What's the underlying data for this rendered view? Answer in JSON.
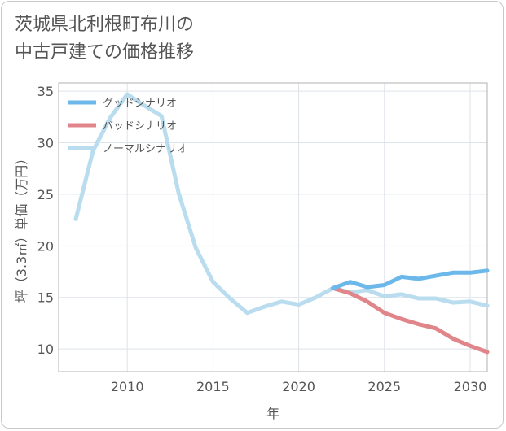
{
  "title_line1": "茨城県北利根町布川の",
  "title_line2": "中古戸建ての価格推移",
  "chart_data": {
    "type": "line",
    "title": "茨城県北利根町布川の中古戸建ての価格推移",
    "xlabel": "年",
    "ylabel": "坪（3.3㎡）単価（万円）",
    "xlim": [
      2006,
      2031
    ],
    "ylim": [
      7.8,
      35.8
    ],
    "xticks": [
      2010,
      2015,
      2020,
      2025,
      2030
    ],
    "yticks": [
      10,
      15,
      20,
      25,
      30,
      35
    ],
    "grid": true,
    "legend_position": "top-left",
    "series": [
      {
        "name": "グッドシナリオ",
        "color": "#6cb8ea",
        "x": [
          2022,
          2023,
          2024,
          2025,
          2026,
          2027,
          2028,
          2029,
          2030,
          2031
        ],
        "y": [
          15.9,
          16.5,
          16.0,
          16.2,
          17.0,
          16.8,
          17.1,
          17.4,
          17.4,
          17.6
        ]
      },
      {
        "name": "バッドシナリオ",
        "color": "#e0868b",
        "x": [
          2022,
          2023,
          2024,
          2025,
          2026,
          2027,
          2028,
          2029,
          2030,
          2031
        ],
        "y": [
          15.9,
          15.4,
          14.6,
          13.5,
          12.9,
          12.4,
          12.0,
          11.0,
          10.3,
          9.7
        ]
      },
      {
        "name": "ノーマルシナリオ",
        "color": "#b9ddef",
        "x": [
          2007,
          2008,
          2009,
          2010,
          2011,
          2012,
          2013,
          2014,
          2015,
          2016,
          2017,
          2018,
          2019,
          2020,
          2021,
          2022,
          2023,
          2024,
          2025,
          2026,
          2027,
          2028,
          2029,
          2030,
          2031
        ],
        "y": [
          22.6,
          29.2,
          32.4,
          34.7,
          33.6,
          32.6,
          25.1,
          19.8,
          16.5,
          14.9,
          13.5,
          14.1,
          14.6,
          14.3,
          15.0,
          15.9,
          15.5,
          15.7,
          15.1,
          15.3,
          14.9,
          14.9,
          14.5,
          14.6,
          14.2
        ]
      }
    ]
  }
}
